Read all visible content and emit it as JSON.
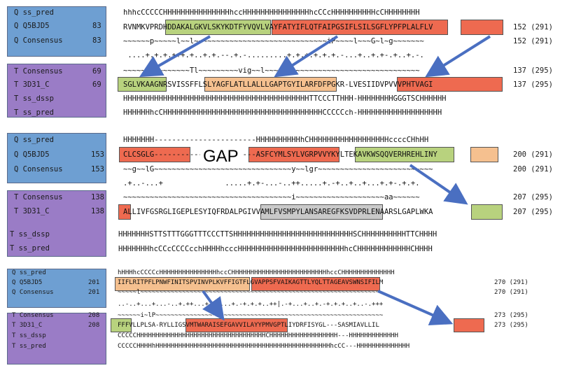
{
  "block1": {
    "labels": [
      "Q ss_pred",
      "Q Q5BJD5",
      "Q Consensus",
      "T Consensus",
      "T 3D31_C",
      "T ss_dssp",
      "T ss_pred"
    ],
    "starts": [
      "83",
      "83",
      "69",
      "69"
    ],
    "rows": [
      "hhhcCCCCCHHHHHHHHHHHHHHHhccHHHHHHHHHHHHHHHhcCCcHHHHHHHHHHcCHHHHHHHH",
      "RVNMKVPRDHDDAKALGKVLSKYKDTFYVQVLVAYFATYIFLQTFAIPGSIFLSILSGFLYPFPLALFLV",
      "~~~~~~p~~~~~l~~l~~~~~~~~~~~~~~~~~~~~~~~~~~~~~~iP~~~~l~~~G~l~g~~~~~~~",
      " ....+.+.+.+++.+..+.+.--.+.-.........+.+.+.+.+.+.-...+..+.+-.+..+.-.",
      "~~~~~~~~~~~~~~~Tl~~~~~~~~~vig~~l~~~~~~~~~~~~~~~~~~~~~~~~~~~~~~~~~~~",
      "SGLVKAAGNRSVISSFFLSLYAGFLATLLALLLGAPTGYILARFDFPGKR-LVESIIDVPVVVPHTVAGI",
      "HHHHHHHHHHHHHHHHHHHHHHHHHHHHHHHHHHHHHHHHHHTTCCCTTHHH-HHHHHHHHGGGTSCHHHHHH",
      "HHHHHHhcCHHHHHHHHHHHHHHHHHHHHHHHHHHHHHHHHHHHHCCCCCch-HHHHHHHHHHHHHHHHHHH"
    ],
    "ends": [
      "152 (291)",
      "152 (291)",
      "137 (295)",
      "137 (295)"
    ]
  },
  "block2": {
    "labels": [
      "Q ss_pred",
      "Q Q5BJD5",
      "Q Consensus",
      "T Consensus",
      "T 3D31_C",
      "T ss_dssp",
      "T ss_pred"
    ],
    "starts": [
      "153",
      "153",
      "138",
      "138"
    ],
    "gap_label": "GAP",
    "rows": [
      "HHHHHHH-----------------------HHHHHHHHHHhCHHHHHHHHHHHHHHHHHHccccCHhHH",
      "CLCSGLG-----------------------ASFCYMLSYLVGRPVVYKYLTEKAVKWSQQVERHREHLINY",
      "~~g~~lG~~~~~~~~~~~~~~~~~~~~~~~~~~~~~~~y~~lgr~~~~~~~~~~~~~~~~~~~~~~~~~~",
      ".+..-...+              .....+.+-...-..++.....+.-+..+..+...+.+-.+.+.",
      "~~~~~~~~~~~~~~~~~~~~~~~~~~~~~~~~~~~~~~i~~~~~~~~~~~~~~~~~~~~aa~~~~~~",
      "ALLIVFGSRGLIGEPLESYIQFRDALPGIVVAMLFVSMPYLANSAREGFKSVDPRLENAARSLGAPLWKA",
      "HHHHHHHSTTSTTTGGGTTTCCCTTSHHHHHHHHHHHHHHHHHHHHHHHHHHHSCHHHHHHHHHHTTCHHHH",
      "HHHHHHHhcCCcCCCCcchHHHHhcccHHHHHHHHHHHHHHHHHHHHHHHHhcCHHHHHHHHHHHHCHHHH"
    ],
    "ends": [
      "200 (291)",
      "200 (291)",
      "207 (295)",
      "207 (295)"
    ]
  },
  "block3": {
    "labels": [
      "Q ss_pred",
      "Q Q5BJD5",
      "Q Consensus",
      "T Consensus",
      "T 3D31_C",
      "T ss_dssp",
      "T ss_pred"
    ],
    "starts": [
      "201",
      "201",
      "208",
      "208"
    ],
    "rows": [
      "hHHHhcCCCCcHHHHHHHHHHHHHHHhccCHHHHHHHHHHHHHHHHHHHHHHHHHhccCHHHHHHHHHHHHHH",
      "IIFLRITPFLPNWFINITSPVINVPLKVFFIGTFLGVAPPSFVAIKAGTTLYQLTTAGEAVSWNSIFILM",
      "~~~~~l~~~~~~~~~~~~~~~~~~~~~~~~~~~~~~~~~~~~~~~~~~~~~~~~~~~~~~~~~~~~~~~",
      "..-..+...+...-..+.++...+.+....+.-+.+.+..++|.-+...+..+.-+.+.+..+..-.+++",
      "~~~~~~i~lP~~~~~~~~~~~~~~~~~~~~~~~~~~~~~~~~~~~~~~~~~~~~~~~~~~~~~~~~~~~~",
      "FFFVLLPLSA-RYLLIGSVMTWARAISEFGAVVILAYYPMVGPTLIYDRFISYGL---SASMIAVLLIL",
      "CCCCCHHHHHHHHHHHHHHHHHHHHHHHHHHHHHHHHHHCHHHHHHHHHHHHHHHHHH---HHHHHHHHHHHHH",
      "CCCCCHHHHhHHHHHHHHHHHHHHHHHHHHHHHHHHHHHHHHHHHHHHHHHHHHHHhcCC---HHHHHHHHHHHHHH"
    ],
    "ends": [
      "270 (291)",
      "270 (291)",
      "273 (295)",
      "273 (295)"
    ]
  }
}
